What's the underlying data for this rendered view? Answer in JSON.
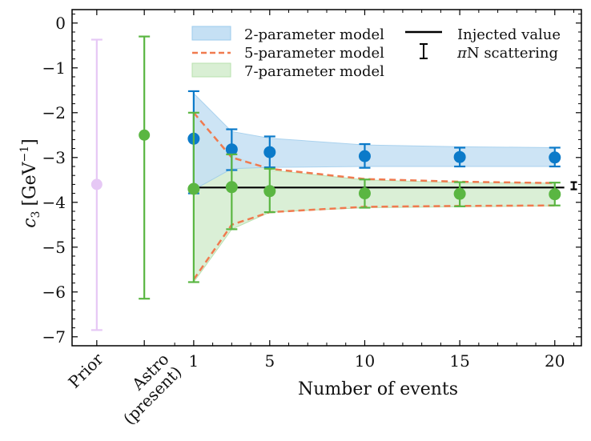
{
  "chart_data": {
    "type": "errorbar",
    "title": "",
    "xlabel": "Number of events",
    "ylabel_main": "c",
    "ylabel_sub": "3",
    "ylabel_unit_open": "[GeV",
    "ylabel_unit_sup": "−1",
    "ylabel_unit_close": "]",
    "ylim": [
      -7.2,
      0.3
    ],
    "yticks": [
      0,
      -1,
      -2,
      -3,
      -4,
      -5,
      -6,
      -7
    ],
    "ytick_labels": [
      "0",
      "−1",
      "−2",
      "−3",
      "−4",
      "−5",
      "−6",
      "−7"
    ],
    "xlim": [
      -5.4,
      21.4
    ],
    "xticks": [
      1,
      5,
      10,
      15,
      20
    ],
    "xtick_labels": [
      "1",
      "5",
      "10",
      "15",
      "20"
    ],
    "category_ticks": [
      {
        "x": -4.1,
        "label": "Prior"
      },
      {
        "x": -1.6,
        "label_line1": "Astro",
        "label_line2": "(present)"
      }
    ],
    "prior": {
      "x": -4.1,
      "y": -3.6,
      "low": -6.85,
      "high": -0.37,
      "color": "#e6c8f5"
    },
    "astro": {
      "x": -1.6,
      "y": -2.5,
      "low": -6.15,
      "high": -0.3,
      "color": "#5ab642"
    },
    "n_events": [
      1,
      3,
      5,
      10,
      15,
      20
    ],
    "blue_points": {
      "y": [
        -2.58,
        -2.82,
        -2.88,
        -2.97,
        -2.99,
        -3.0
      ],
      "low": [
        -3.8,
        -3.28,
        -3.22,
        -3.23,
        -3.2,
        -3.2
      ],
      "high": [
        -1.52,
        -2.37,
        -2.53,
        -2.7,
        -2.78,
        -2.78
      ],
      "color": "#0b7ac9"
    },
    "green_points": {
      "y": [
        -3.7,
        -3.66,
        -3.75,
        -3.8,
        -3.81,
        -3.82
      ],
      "low": [
        -5.78,
        -4.6,
        -4.22,
        -4.12,
        -4.09,
        -4.07
      ],
      "high": [
        -2.0,
        -2.93,
        -3.25,
        -3.49,
        -3.55,
        -3.56
      ],
      "color": "#5ab642"
    },
    "band_2param": {
      "x": [
        1,
        3,
        5,
        10,
        15,
        20
      ],
      "upper": [
        -1.57,
        -2.42,
        -2.57,
        -2.72,
        -2.76,
        -2.78
      ],
      "lower": [
        -3.72,
        -3.25,
        -3.22,
        -3.2,
        -3.2,
        -3.2
      ],
      "color": "#c5e0f4",
      "edge": "#9ccbec"
    },
    "band_7param": {
      "x": [
        1,
        3,
        5,
        10,
        15,
        20
      ],
      "upper": [
        -2.0,
        -2.95,
        -3.28,
        -3.5,
        -3.56,
        -3.57
      ],
      "lower": [
        -5.78,
        -4.6,
        -4.22,
        -4.12,
        -4.1,
        -4.08
      ],
      "color": "#d9efd4",
      "edge": "#b8e0ae"
    },
    "dashed_5param": {
      "x": [
        1,
        3,
        5,
        10,
        15,
        20
      ],
      "upper": [
        -2.0,
        -3.0,
        -3.25,
        -3.48,
        -3.54,
        -3.57
      ],
      "lower": [
        -5.72,
        -4.5,
        -4.22,
        -4.1,
        -4.08,
        -4.07
      ],
      "color": "#f07a4f"
    },
    "injected_value": {
      "y": -3.67,
      "x_start": 1,
      "x_end": 20.5,
      "color": "#000000"
    },
    "pin_scattering": {
      "x": 21.0,
      "y": -3.63,
      "low": -3.71,
      "high": -3.55,
      "color": "#000000"
    },
    "legend": {
      "placement": "top",
      "entries": [
        {
          "key": "band_2param",
          "label": "2-parameter model"
        },
        {
          "key": "dashed_5param",
          "label": "5-parameter model"
        },
        {
          "key": "band_7param",
          "label": "7-parameter model"
        },
        {
          "key": "injected_value",
          "label": "Injected value"
        },
        {
          "key": "pin_scattering",
          "label_sym": "π",
          "label": "N scattering"
        }
      ]
    }
  }
}
